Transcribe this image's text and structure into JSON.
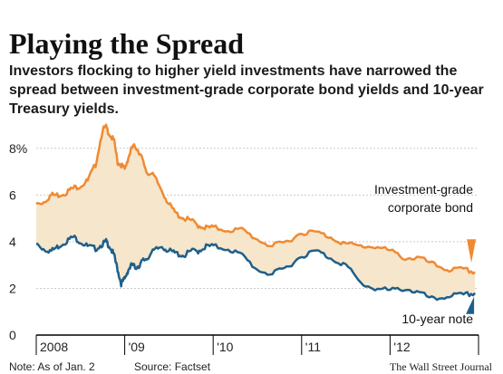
{
  "header": {
    "title": "Playing the Spread",
    "subtitle": "Investors flocking to higher yield investments have narrowed the spread between investment-grade corporate bond yields and 10-year Treasury yields."
  },
  "footer": {
    "note": "Note: As of Jan. 2",
    "source": "Source: Factset",
    "credit": "The Wall Street Journal"
  },
  "colors": {
    "corporate": "#f08a32",
    "treasury": "#1f5f8b",
    "spread_fill": "#f5e6cc",
    "grid": "#c9c9c9"
  },
  "chart_data": {
    "type": "line",
    "title": "Playing the Spread",
    "xlabel": "",
    "ylabel": "",
    "ylim": [
      0,
      9
    ],
    "y_ticks": [
      "0",
      "2",
      "4",
      "6",
      "8%"
    ],
    "y_tick_values": [
      0,
      2,
      4,
      6,
      8
    ],
    "x_range": [
      2008.0,
      2013.0
    ],
    "x_ticks": [
      "2008",
      "'09",
      "'10",
      "'11",
      "'12"
    ],
    "x_tick_values": [
      2008,
      2009,
      2010,
      2011,
      2012
    ],
    "grid": true,
    "legend": "inline labels",
    "fill_between": true,
    "series": [
      {
        "name": "Investment-grade corporate bond",
        "x": [
          2008.0,
          2008.08,
          2008.17,
          2008.25,
          2008.33,
          2008.42,
          2008.5,
          2008.58,
          2008.67,
          2008.75,
          2008.79,
          2008.83,
          2008.88,
          2008.92,
          2008.96,
          2009.0,
          2009.04,
          2009.08,
          2009.12,
          2009.17,
          2009.21,
          2009.25,
          2009.33,
          2009.42,
          2009.5,
          2009.58,
          2009.67,
          2009.75,
          2009.83,
          2009.92,
          2010.0,
          2010.17,
          2010.33,
          2010.5,
          2010.67,
          2010.83,
          2011.0,
          2011.17,
          2011.33,
          2011.5,
          2011.67,
          2011.83,
          2012.0,
          2012.17,
          2012.33,
          2012.5,
          2012.67,
          2012.83,
          2012.96
        ],
        "values": [
          5.6,
          5.7,
          6.0,
          6.0,
          6.1,
          6.3,
          6.4,
          6.6,
          7.3,
          8.8,
          8.9,
          8.6,
          8.3,
          7.4,
          7.3,
          7.1,
          7.6,
          8.0,
          8.1,
          7.8,
          7.4,
          7.0,
          6.8,
          6.2,
          5.6,
          5.2,
          5.0,
          4.9,
          4.7,
          4.6,
          4.6,
          4.5,
          4.5,
          4.1,
          3.8,
          4.0,
          4.4,
          4.4,
          4.2,
          3.9,
          3.8,
          3.8,
          3.6,
          3.3,
          3.3,
          3.0,
          2.8,
          2.8,
          2.7
        ]
      },
      {
        "name": "10-year note",
        "x": [
          2008.0,
          2008.08,
          2008.17,
          2008.25,
          2008.33,
          2008.42,
          2008.5,
          2008.58,
          2008.67,
          2008.75,
          2008.79,
          2008.83,
          2008.88,
          2008.92,
          2008.96,
          2009.0,
          2009.04,
          2009.08,
          2009.12,
          2009.17,
          2009.21,
          2009.25,
          2009.33,
          2009.42,
          2009.5,
          2009.58,
          2009.67,
          2009.75,
          2009.83,
          2009.92,
          2010.0,
          2010.17,
          2010.33,
          2010.5,
          2010.67,
          2010.83,
          2011.0,
          2011.17,
          2011.33,
          2011.5,
          2011.67,
          2011.83,
          2012.0,
          2012.17,
          2012.33,
          2012.5,
          2012.67,
          2012.83,
          2012.96
        ],
        "values": [
          3.9,
          3.7,
          3.6,
          3.8,
          4.0,
          4.2,
          4.0,
          3.8,
          3.7,
          3.9,
          4.0,
          3.8,
          3.4,
          2.8,
          2.2,
          2.4,
          2.8,
          3.0,
          2.9,
          3.0,
          3.2,
          3.3,
          3.6,
          3.8,
          3.6,
          3.5,
          3.4,
          3.6,
          3.6,
          3.8,
          3.8,
          3.7,
          3.4,
          2.8,
          2.6,
          2.9,
          3.4,
          3.6,
          3.3,
          3.0,
          2.2,
          2.0,
          1.9,
          2.0,
          1.8,
          1.5,
          1.7,
          1.7,
          1.8
        ]
      }
    ],
    "annotations": [
      {
        "series": 0,
        "text_lines": [
          "Investment-grade",
          "corporate bond"
        ]
      },
      {
        "series": 1,
        "text_lines": [
          "10-year note"
        ]
      }
    ]
  }
}
